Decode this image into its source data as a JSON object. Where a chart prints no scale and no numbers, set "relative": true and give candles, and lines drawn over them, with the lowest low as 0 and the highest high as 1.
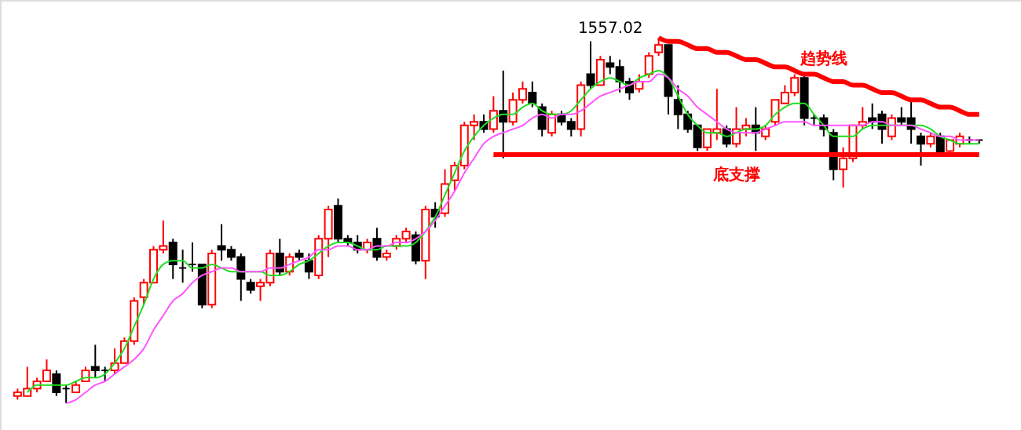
{
  "chart_data": {
    "type": "candlestick",
    "relative": true,
    "tick_labels": false,
    "categories": [
      null,
      null,
      null,
      null,
      null,
      null,
      null,
      null,
      null,
      null,
      null,
      null,
      null,
      null,
      null,
      null,
      null,
      null,
      null,
      null,
      null,
      null,
      null,
      null,
      null,
      null,
      null,
      null,
      null,
      null,
      null,
      null,
      null,
      null,
      null,
      null,
      null,
      null,
      null,
      null,
      null,
      null,
      null,
      null,
      null,
      null,
      null,
      null,
      null,
      null,
      null,
      null,
      null,
      null,
      null,
      null,
      null,
      null,
      null,
      null,
      null,
      null,
      null,
      null,
      null,
      null,
      null,
      null,
      null,
      null,
      null,
      null,
      null,
      null,
      null,
      null,
      null,
      null,
      null,
      null,
      null,
      null,
      null,
      null,
      null,
      null,
      null,
      null,
      null,
      null,
      null,
      null,
      null,
      null,
      null,
      null,
      null,
      null,
      null,
      null
    ],
    "ohlc": [
      [
        0.02,
        0.04,
        0.01,
        0.03
      ],
      [
        0.02,
        0.1,
        0.02,
        0.04
      ],
      [
        0.04,
        0.07,
        0.03,
        0.06
      ],
      [
        0.06,
        0.12,
        0.06,
        0.09
      ],
      [
        0.08,
        0.09,
        0.02,
        0.03
      ],
      [
        0.04,
        0.05,
        0.0,
        0.04
      ],
      [
        0.03,
        0.06,
        0.03,
        0.05
      ],
      [
        0.06,
        0.1,
        0.06,
        0.09
      ],
      [
        0.1,
        0.16,
        0.07,
        0.09
      ],
      [
        0.09,
        0.1,
        0.06,
        0.09
      ],
      [
        0.09,
        0.15,
        0.08,
        0.11
      ],
      [
        0.11,
        0.18,
        0.11,
        0.17
      ],
      [
        0.17,
        0.29,
        0.16,
        0.28
      ],
      [
        0.29,
        0.34,
        0.27,
        0.33
      ],
      [
        0.33,
        0.43,
        0.33,
        0.42
      ],
      [
        0.42,
        0.5,
        0.41,
        0.43
      ],
      [
        0.44,
        0.45,
        0.34,
        0.38
      ],
      [
        0.37,
        0.42,
        0.33,
        0.37
      ],
      [
        0.38,
        0.44,
        0.36,
        0.38
      ],
      [
        0.38,
        0.38,
        0.26,
        0.27
      ],
      [
        0.27,
        0.42,
        0.26,
        0.41
      ],
      [
        0.43,
        0.49,
        0.39,
        0.42
      ],
      [
        0.42,
        0.43,
        0.39,
        0.4
      ],
      [
        0.4,
        0.41,
        0.28,
        0.34
      ],
      [
        0.33,
        0.34,
        0.3,
        0.31
      ],
      [
        0.32,
        0.34,
        0.28,
        0.33
      ],
      [
        0.33,
        0.42,
        0.32,
        0.41
      ],
      [
        0.41,
        0.45,
        0.35,
        0.36
      ],
      [
        0.36,
        0.41,
        0.35,
        0.4
      ],
      [
        0.41,
        0.42,
        0.39,
        0.4
      ],
      [
        0.39,
        0.41,
        0.34,
        0.36
      ],
      [
        0.35,
        0.46,
        0.34,
        0.45
      ],
      [
        0.45,
        0.54,
        0.4,
        0.53
      ],
      [
        0.54,
        0.56,
        0.44,
        0.45
      ],
      [
        0.45,
        0.46,
        0.43,
        0.44
      ],
      [
        0.44,
        0.46,
        0.41,
        0.42
      ],
      [
        0.42,
        0.45,
        0.41,
        0.44
      ],
      [
        0.45,
        0.48,
        0.39,
        0.4
      ],
      [
        0.4,
        0.42,
        0.39,
        0.41
      ],
      [
        0.43,
        0.46,
        0.42,
        0.45
      ],
      [
        0.45,
        0.48,
        0.44,
        0.47
      ],
      [
        0.46,
        0.47,
        0.38,
        0.39
      ],
      [
        0.39,
        0.54,
        0.34,
        0.53
      ],
      [
        0.53,
        0.55,
        0.48,
        0.51
      ],
      [
        0.52,
        0.64,
        0.51,
        0.6
      ],
      [
        0.61,
        0.66,
        0.58,
        0.65
      ],
      [
        0.65,
        0.77,
        0.64,
        0.76
      ],
      [
        0.76,
        0.79,
        0.72,
        0.77
      ],
      [
        0.77,
        0.79,
        0.74,
        0.75
      ],
      [
        0.75,
        0.84,
        0.74,
        0.8
      ],
      [
        0.8,
        0.91,
        0.67,
        0.77
      ],
      [
        0.77,
        0.85,
        0.76,
        0.83
      ],
      [
        0.83,
        0.88,
        0.82,
        0.86
      ],
      [
        0.85,
        0.88,
        0.81,
        0.82
      ],
      [
        0.81,
        0.82,
        0.73,
        0.75
      ],
      [
        0.74,
        0.8,
        0.73,
        0.79
      ],
      [
        0.79,
        0.8,
        0.76,
        0.77
      ],
      [
        0.77,
        0.78,
        0.73,
        0.75
      ],
      [
        0.75,
        0.88,
        0.73,
        0.87
      ],
      [
        0.9,
        0.99,
        0.86,
        0.87
      ],
      [
        0.87,
        0.95,
        0.87,
        0.94
      ],
      [
        0.93,
        0.95,
        0.9,
        0.92
      ],
      [
        0.92,
        0.94,
        0.85,
        0.88
      ],
      [
        0.88,
        0.89,
        0.83,
        0.85
      ],
      [
        0.86,
        0.9,
        0.85,
        0.88
      ],
      [
        0.9,
        0.96,
        0.89,
        0.95
      ],
      [
        0.96,
        1.0,
        0.95,
        0.98
      ],
      [
        0.98,
        0.98,
        0.79,
        0.84
      ],
      [
        0.83,
        0.87,
        0.75,
        0.79
      ],
      [
        0.79,
        0.8,
        0.74,
        0.75
      ],
      [
        0.76,
        0.76,
        0.69,
        0.7
      ],
      [
        0.7,
        0.75,
        0.69,
        0.75
      ],
      [
        0.74,
        0.86,
        0.72,
        0.75
      ],
      [
        0.75,
        0.76,
        0.7,
        0.71
      ],
      [
        0.71,
        0.81,
        0.7,
        0.75
      ],
      [
        0.75,
        0.78,
        0.73,
        0.76
      ],
      [
        0.76,
        0.81,
        0.69,
        0.74
      ],
      [
        0.73,
        0.76,
        0.72,
        0.75
      ],
      [
        0.77,
        0.83,
        0.76,
        0.83
      ],
      [
        0.82,
        0.87,
        0.82,
        0.85
      ],
      [
        0.85,
        0.9,
        0.84,
        0.89
      ],
      [
        0.89,
        0.9,
        0.76,
        0.78
      ],
      [
        0.78,
        0.79,
        0.76,
        0.78
      ],
      [
        0.78,
        0.79,
        0.73,
        0.75
      ],
      [
        0.74,
        0.75,
        0.61,
        0.64
      ],
      [
        0.64,
        0.7,
        0.59,
        0.67
      ],
      [
        0.67,
        0.76,
        0.66,
        0.76
      ],
      [
        0.76,
        0.81,
        0.75,
        0.77
      ],
      [
        0.78,
        0.82,
        0.75,
        0.77
      ],
      [
        0.79,
        0.8,
        0.71,
        0.75
      ],
      [
        0.73,
        0.79,
        0.72,
        0.78
      ],
      [
        0.78,
        0.81,
        0.76,
        0.77
      ],
      [
        0.78,
        0.83,
        0.71,
        0.75
      ],
      [
        0.73,
        0.74,
        0.65,
        0.71
      ],
      [
        0.71,
        0.74,
        0.7,
        0.73
      ],
      [
        0.73,
        0.74,
        0.68,
        0.68
      ],
      [
        0.69,
        0.72,
        0.68,
        0.72
      ],
      [
        0.71,
        0.74,
        0.7,
        0.73
      ],
      [
        0.72,
        0.73,
        0.71,
        0.72
      ],
      [
        0.72,
        0.72,
        0.71,
        0.72
      ]
    ],
    "colors": [
      "#ff0000",
      "#ff0000",
      "#ff0000",
      "#ff0000",
      "#000000",
      "#000000",
      "#ff0000",
      "#ff0000",
      "#000000",
      "#000000",
      "#ff0000",
      "#ff0000",
      "#ff0000",
      "#ff0000",
      "#ff0000",
      "#ff0000",
      "#000000",
      "#000000",
      "#000000",
      "#000000",
      "#ff0000",
      "#000000",
      "#000000",
      "#000000",
      "#000000",
      "#ff0000",
      "#ff0000",
      "#000000",
      "#ff0000",
      "#000000",
      "#000000",
      "#ff0000",
      "#ff0000",
      "#000000",
      "#000000",
      "#000000",
      "#ff0000",
      "#000000",
      "#ff0000",
      "#ff0000",
      "#ff0000",
      "#000000",
      "#ff0000",
      "#000000",
      "#ff0000",
      "#ff0000",
      "#ff0000",
      "#ff0000",
      "#000000",
      "#ff0000",
      "#000000",
      "#ff0000",
      "#ff0000",
      "#000000",
      "#000000",
      "#ff0000",
      "#000000",
      "#000000",
      "#ff0000",
      "#000000",
      "#ff0000",
      "#000000",
      "#000000",
      "#000000",
      "#ff0000",
      "#ff0000",
      "#ff0000",
      "#000000",
      "#000000",
      "#000000",
      "#000000",
      "#ff0000",
      "#ff0000",
      "#000000",
      "#ff0000",
      "#ff0000",
      "#000000",
      "#ff0000",
      "#ff0000",
      "#ff0000",
      "#ff0000",
      "#000000",
      "#000000",
      "#000000",
      "#000000",
      "#ff0000",
      "#ff0000",
      "#ff0000",
      "#000000",
      "#000000",
      "#ff0000",
      "#000000",
      "#000000",
      "#000000",
      "#ff0000",
      "#000000",
      "#ff0000",
      "#ff0000",
      "#000000",
      "#000000"
    ],
    "series": [
      {
        "type": "line",
        "color": "#22dd22",
        "values": [
          null,
          0.03,
          0.05,
          0.05,
          0.05,
          0.05,
          0.06,
          0.07,
          0.07,
          0.08,
          0.11,
          0.15,
          0.21,
          0.27,
          0.34,
          0.38,
          0.39,
          0.39,
          0.37,
          0.37,
          0.38,
          0.37,
          0.36,
          0.36,
          0.36,
          0.36,
          0.35,
          0.35,
          0.36,
          0.38,
          0.39,
          0.41,
          0.43,
          0.44,
          0.44,
          0.43,
          0.42,
          0.42,
          0.43,
          0.43,
          0.43,
          0.44,
          0.47,
          0.51,
          0.57,
          0.63,
          0.69,
          0.73,
          0.76,
          0.78,
          0.79,
          0.79,
          0.81,
          0.82,
          0.8,
          0.79,
          0.79,
          0.8,
          0.83,
          0.86,
          0.88,
          0.89,
          0.88,
          0.87,
          0.89,
          0.9,
          0.91,
          0.89,
          0.84,
          0.79,
          0.76,
          0.74,
          0.74,
          0.73,
          0.74,
          0.75,
          0.75,
          0.76,
          0.79,
          0.81,
          0.82,
          0.82,
          0.79,
          0.76,
          0.73,
          0.73,
          0.73,
          0.75,
          0.76,
          0.76,
          0.76,
          0.76,
          0.76,
          0.76,
          0.75,
          0.73,
          0.72,
          0.71,
          0.71,
          0.71
        ]
      },
      {
        "type": "line",
        "color": "#ff55ff",
        "values": [
          null,
          null,
          null,
          null,
          null,
          0.0,
          0.01,
          0.03,
          0.05,
          0.06,
          0.08,
          0.1,
          0.12,
          0.15,
          0.2,
          0.24,
          0.28,
          0.3,
          0.33,
          0.35,
          0.36,
          0.37,
          0.37,
          0.36,
          0.36,
          0.36,
          0.37,
          0.37,
          0.38,
          0.39,
          0.4,
          0.42,
          0.42,
          0.43,
          0.43,
          0.42,
          0.42,
          0.43,
          0.43,
          0.44,
          0.44,
          0.45,
          0.47,
          0.5,
          0.54,
          0.58,
          0.63,
          0.67,
          0.71,
          0.73,
          0.74,
          0.75,
          0.76,
          0.78,
          0.79,
          0.78,
          0.79,
          0.79,
          0.8,
          0.82,
          0.84,
          0.85,
          0.86,
          0.87,
          0.88,
          0.88,
          0.9,
          0.89,
          0.86,
          0.84,
          0.81,
          0.79,
          0.77,
          0.75,
          0.74,
          0.74,
          0.74,
          0.75,
          0.76,
          0.77,
          0.77,
          0.77,
          0.76,
          0.76,
          0.76,
          0.76,
          0.76,
          0.76,
          0.77,
          0.77,
          0.76,
          0.76,
          0.76,
          0.75,
          0.74,
          0.73,
          0.73,
          0.72,
          0.72,
          0.72
        ]
      },
      {
        "type": "line",
        "name": "趋势线",
        "color": "#ff0000",
        "values": [
          null,
          null,
          null,
          null,
          null,
          null,
          null,
          null,
          null,
          null,
          null,
          null,
          null,
          null,
          null,
          null,
          null,
          null,
          null,
          null,
          null,
          null,
          null,
          null,
          null,
          null,
          null,
          null,
          null,
          null,
          null,
          null,
          null,
          null,
          null,
          null,
          null,
          null,
          null,
          null,
          null,
          null,
          null,
          null,
          null,
          null,
          null,
          null,
          null,
          null,
          null,
          null,
          null,
          null,
          null,
          null,
          null,
          null,
          null,
          null,
          null,
          null,
          null,
          null,
          null,
          null,
          1.0,
          0.99,
          0.99,
          0.98,
          0.97,
          0.97,
          0.96,
          0.96,
          0.95,
          0.94,
          0.94,
          0.93,
          0.92,
          0.92,
          0.91,
          0.9,
          0.9,
          0.89,
          0.88,
          0.88,
          0.87,
          0.87,
          0.86,
          0.85,
          0.85,
          0.84,
          0.83,
          0.83,
          0.82,
          0.81,
          0.81,
          0.8,
          0.79,
          0.79
        ]
      },
      {
        "type": "line",
        "name": "底支撑",
        "color": "#ff0000",
        "values": [
          null,
          null,
          null,
          null,
          null,
          null,
          null,
          null,
          null,
          null,
          null,
          null,
          null,
          null,
          null,
          null,
          null,
          null,
          null,
          null,
          null,
          null,
          null,
          null,
          null,
          null,
          null,
          null,
          null,
          null,
          null,
          null,
          null,
          null,
          null,
          null,
          null,
          null,
          null,
          null,
          null,
          null,
          null,
          null,
          null,
          null,
          null,
          null,
          null,
          0.68,
          0.68,
          0.68,
          0.68,
          0.68,
          0.68,
          0.68,
          0.68,
          0.68,
          0.68,
          0.68,
          0.68,
          0.68,
          0.68,
          0.68,
          0.68,
          0.68,
          0.68,
          0.68,
          0.68,
          0.68,
          0.68,
          0.68,
          0.68,
          0.68,
          0.68,
          0.68,
          0.68,
          0.68,
          0.68,
          0.68,
          0.68,
          0.68,
          0.68,
          0.68,
          0.68,
          0.68,
          0.68,
          0.68,
          0.68,
          0.68,
          0.68,
          0.68,
          0.68,
          0.68,
          0.68,
          0.68,
          0.68,
          0.68,
          0.68,
          0.68
        ]
      }
    ],
    "annotations": [
      "1557.02"
    ]
  }
}
